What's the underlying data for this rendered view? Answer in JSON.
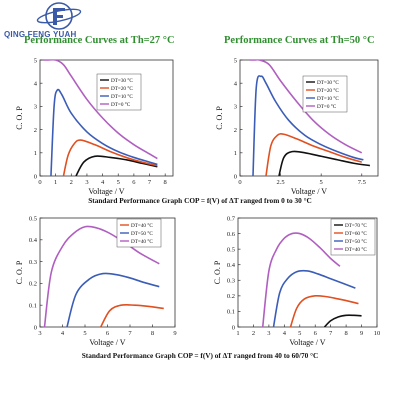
{
  "brand": {
    "logo_text": "QING FENG YUAH",
    "colors": {
      "logo": "#3a5aa8",
      "title": "#2f8f2f"
    }
  },
  "titles": [
    "Performance Curves at Th=27 °C",
    "Performance Curves at Th=50 °C"
  ],
  "captions": {
    "top": "Standard Performance Graph COP = f(V) of ΔT ranged from 0 to 30 °C",
    "bottom": "Standard Performance Graph COP = f(V) of ΔT ranged from 40 to 60/70 °C"
  },
  "chart_data": [
    {
      "type": "line",
      "title": "Performance Curves at Th=27 °C",
      "xlabel": "Voltage / V",
      "ylabel": "C. O. P",
      "xlim": [
        0,
        8.5
      ],
      "ylim": [
        0,
        5
      ],
      "xticks": [
        0,
        1,
        2,
        3,
        4,
        5,
        6,
        7,
        8
      ],
      "yticks": [
        0,
        1,
        2,
        3,
        4,
        5
      ],
      "grid": false,
      "legend": "top-right",
      "series": [
        {
          "name": "DT=30 °C",
          "color": "#111111",
          "x": [
            2.3,
            2.8,
            3.5,
            4.5,
            5.5,
            6.5,
            7.5
          ],
          "y": [
            0.0,
            0.6,
            0.85,
            0.8,
            0.7,
            0.55,
            0.4
          ]
        },
        {
          "name": "DT=20 °C",
          "color": "#e05020",
          "x": [
            1.5,
            1.8,
            2.2,
            2.6,
            3.5,
            4.5,
            5.5,
            6.5,
            7.5
          ],
          "y": [
            0.0,
            0.9,
            1.4,
            1.55,
            1.35,
            1.05,
            0.8,
            0.6,
            0.45
          ]
        },
        {
          "name": "DT=10 °C",
          "color": "#3b5db8",
          "x": [
            0.7,
            0.9,
            1.1,
            1.4,
            2.0,
            3.0,
            4.0,
            5.0,
            6.0,
            7.0,
            7.5
          ],
          "y": [
            0.0,
            3.0,
            3.7,
            3.5,
            2.7,
            1.9,
            1.4,
            1.05,
            0.8,
            0.6,
            0.5
          ]
        },
        {
          "name": "DT=0 °C",
          "color": "#b05fc0",
          "x": [
            0.2,
            0.5,
            1.0,
            1.5,
            2.0,
            3.0,
            4.0,
            5.0,
            6.0,
            7.0,
            7.5
          ],
          "y": [
            5.0,
            5.0,
            5.0,
            4.8,
            4.3,
            3.3,
            2.5,
            1.85,
            1.35,
            0.95,
            0.75
          ]
        }
      ]
    },
    {
      "type": "line",
      "title": "Performance Curves at Th=50 °C",
      "xlabel": "Voltage / V",
      "ylabel": "C. O. P",
      "xlim": [
        0,
        8.5
      ],
      "ylim": [
        0,
        5
      ],
      "xticks": [
        0,
        2.5,
        5,
        7.5
      ],
      "xtick_labels": [
        "0",
        "2.5",
        "5",
        "7.5"
      ],
      "yticks": [
        0,
        1,
        2,
        3,
        4,
        5
      ],
      "grid": false,
      "legend": "top-right",
      "series": [
        {
          "name": "DT=30 °C",
          "color": "#111111",
          "x": [
            2.4,
            2.7,
            3.2,
            4.0,
            5.0,
            6.0,
            7.0,
            8.0
          ],
          "y": [
            0.0,
            0.8,
            1.05,
            1.0,
            0.85,
            0.7,
            0.55,
            0.45
          ]
        },
        {
          "name": "DT=20 °C",
          "color": "#e05020",
          "x": [
            1.6,
            1.9,
            2.3,
            2.7,
            3.5,
            4.5,
            5.5,
            6.5,
            7.5
          ],
          "y": [
            0.0,
            1.3,
            1.75,
            1.8,
            1.6,
            1.3,
            1.05,
            0.8,
            0.6
          ]
        },
        {
          "name": "DT=10 °C",
          "color": "#3b5db8",
          "x": [
            0.8,
            1.0,
            1.3,
            1.6,
            2.2,
            3.0,
            4.0,
            5.0,
            6.0,
            7.0,
            7.6
          ],
          "y": [
            0.0,
            3.8,
            4.3,
            4.0,
            3.2,
            2.4,
            1.75,
            1.35,
            1.05,
            0.8,
            0.7
          ]
        },
        {
          "name": "DT=0 °C",
          "color": "#b05fc0",
          "x": [
            0.6,
            0.9,
            1.2,
            1.8,
            2.5,
            3.5,
            4.5,
            5.5,
            6.5,
            7.5
          ],
          "y": [
            5.0,
            5.0,
            5.0,
            4.8,
            4.1,
            3.2,
            2.4,
            1.8,
            1.35,
            1.0
          ]
        }
      ]
    },
    {
      "type": "line",
      "title": "",
      "xlabel": "Voltage / V",
      "ylabel": "C. O. P",
      "xlim": [
        3,
        9
      ],
      "ylim": [
        0,
        0.5
      ],
      "xticks": [
        3,
        4,
        5,
        6,
        7,
        8,
        9
      ],
      "yticks": [
        0,
        0.1,
        0.2,
        0.3,
        0.4,
        0.5
      ],
      "grid": false,
      "legend": "top-right",
      "series": [
        {
          "name": "DT=40 °C",
          "color": "#e05020",
          "x": [
            5.7,
            6.1,
            6.6,
            7.2,
            7.8,
            8.5
          ],
          "y": [
            0.0,
            0.075,
            0.1,
            0.1,
            0.095,
            0.085
          ]
        },
        {
          "name": "DT=50 °C",
          "color": "#3b5db8",
          "x": [
            4.2,
            4.6,
            5.2,
            5.8,
            6.4,
            7.0,
            7.6,
            8.3
          ],
          "y": [
            0.0,
            0.15,
            0.22,
            0.245,
            0.24,
            0.225,
            0.205,
            0.185
          ]
        },
        {
          "name": "DT=40 °C",
          "color": "#b05fc0",
          "x": [
            3.2,
            3.5,
            4.0,
            4.5,
            5.0,
            5.5,
            6.0,
            6.5,
            7.0,
            7.5,
            8.3
          ],
          "y": [
            0.0,
            0.25,
            0.37,
            0.43,
            0.46,
            0.455,
            0.435,
            0.405,
            0.37,
            0.335,
            0.29
          ]
        }
      ]
    },
    {
      "type": "line",
      "title": "",
      "xlabel": "Voltage / V",
      "ylabel": "C. O. P",
      "xlim": [
        1,
        10
      ],
      "ylim": [
        0,
        0.7
      ],
      "xticks": [
        1,
        2,
        3,
        4,
        5,
        6,
        7,
        8,
        9,
        10
      ],
      "yticks": [
        0,
        0.1,
        0.2,
        0.3,
        0.4,
        0.5,
        0.6,
        0.7
      ],
      "grid": false,
      "legend": "top-right",
      "series": [
        {
          "name": "DT=70 °C",
          "color": "#111111",
          "x": [
            6.6,
            7.0,
            7.5,
            8.0,
            8.5,
            9.0
          ],
          "y": [
            0.0,
            0.04,
            0.065,
            0.075,
            0.075,
            0.072
          ]
        },
        {
          "name": "DT=60 °C",
          "color": "#e05020",
          "x": [
            4.4,
            4.8,
            5.3,
            6.0,
            6.7,
            7.5,
            8.2,
            8.8
          ],
          "y": [
            0.0,
            0.12,
            0.18,
            0.2,
            0.195,
            0.18,
            0.165,
            0.15
          ]
        },
        {
          "name": "DT=50 °C",
          "color": "#3b5db8",
          "x": [
            3.3,
            3.7,
            4.2,
            4.8,
            5.5,
            6.2,
            7.0,
            7.8,
            8.6
          ],
          "y": [
            0.0,
            0.22,
            0.31,
            0.355,
            0.36,
            0.34,
            0.31,
            0.28,
            0.25
          ]
        },
        {
          "name": "DT=40 °C",
          "color": "#b05fc0",
          "x": [
            2.6,
            3.0,
            3.5,
            4.0,
            4.5,
            5.0,
            5.6,
            6.3,
            7.0,
            7.6
          ],
          "y": [
            0.0,
            0.36,
            0.5,
            0.57,
            0.6,
            0.6,
            0.57,
            0.51,
            0.44,
            0.39
          ]
        }
      ]
    }
  ]
}
